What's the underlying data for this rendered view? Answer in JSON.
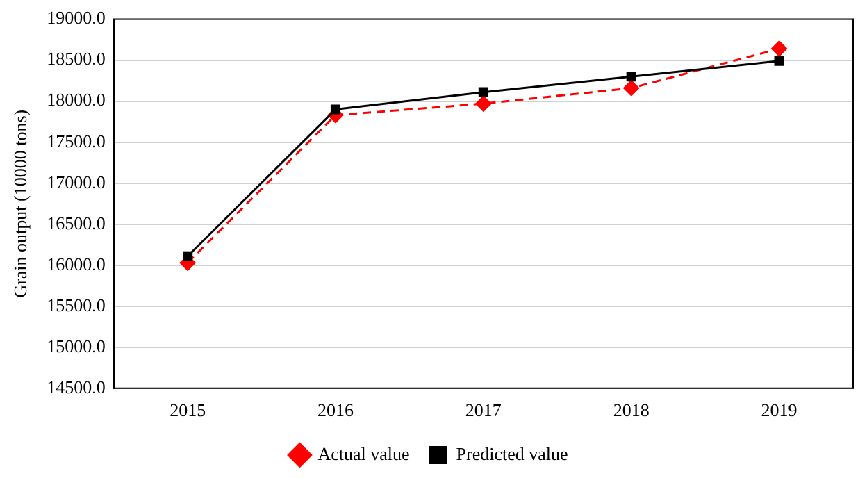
{
  "chart_data": {
    "type": "line",
    "ylabel": "Grain output (10000 tons)",
    "categories": [
      "2015",
      "2016",
      "2017",
      "2018",
      "2019"
    ],
    "series": [
      {
        "name": "Actual value",
        "color": "#ff0000",
        "marker": "diamond",
        "line_style": "dashed",
        "values": [
          16030,
          17830,
          17970,
          18160,
          18640
        ]
      },
      {
        "name": "Predicted value",
        "color": "#000000",
        "marker": "square",
        "line_style": "solid",
        "values": [
          16110,
          17900,
          18110,
          18300,
          18490
        ]
      }
    ],
    "ylim": [
      14500,
      19000
    ],
    "yticks": [
      {
        "value": 14500,
        "label": "14500.0"
      },
      {
        "value": 15000,
        "label": "15000.0"
      },
      {
        "value": 15500,
        "label": "15500.0"
      },
      {
        "value": 16000,
        "label": "16000.0"
      },
      {
        "value": 16500,
        "label": "16500.0"
      },
      {
        "value": 17000,
        "label": "17000.0"
      },
      {
        "value": 17500,
        "label": "17500.0"
      },
      {
        "value": 18000,
        "label": "18000.0"
      },
      {
        "value": 18500,
        "label": "18500.0"
      },
      {
        "value": 19000,
        "label": "19000.0"
      }
    ],
    "grid": "y",
    "legend": "bottom"
  }
}
